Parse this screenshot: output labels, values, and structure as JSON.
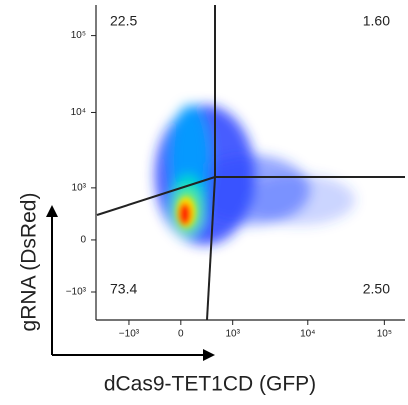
{
  "chart_data": {
    "type": "density",
    "scale": "biexponential",
    "xlabel": "dCas9-TET1CD (GFP)",
    "ylabel": "gRNA (DsRed)",
    "xlim": [
      -2800,
      186000
    ],
    "ylim": [
      -2400,
      250000
    ],
    "xticks": [
      {
        "value": -1000,
        "label": "−10³"
      },
      0,
      {
        "value": 1000,
        "label": "10³"
      },
      {
        "value": 10000,
        "label": "10⁴"
      },
      {
        "value": 100000,
        "label": "10⁵"
      }
    ],
    "yticks": [
      {
        "value": -1000,
        "label": "−10³"
      },
      0,
      {
        "value": 1000,
        "label": "10³"
      },
      {
        "value": 10000,
        "label": "10⁴"
      },
      {
        "value": 100000,
        "label": "10⁵"
      }
    ],
    "quadrants": {
      "values": [
        22.5,
        1.6,
        73.4,
        2.5
      ],
      "value_labels": [
        "22.5",
        "1.60",
        "73.4",
        "2.50"
      ]
    }
  }
}
